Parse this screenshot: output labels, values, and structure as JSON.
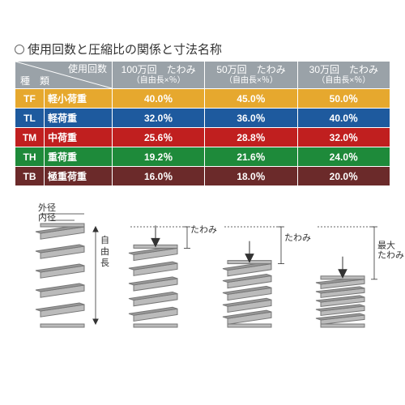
{
  "title": "使用回数と圧縮比の関係と寸法名称",
  "header": {
    "bg": "#9aa2a8",
    "fg": "#ffffff",
    "type_label_top": "使用回数",
    "type_label_bottom": "種　類",
    "cols": [
      {
        "line1": "100万回　たわみ",
        "line2": "（自由長×％）"
      },
      {
        "line1": "50万回　たわみ",
        "line2": "（自由長×％）"
      },
      {
        "line1": "30万回　たわみ",
        "line2": "（自由長×％）"
      }
    ]
  },
  "rows": [
    {
      "code": "TF",
      "name": "軽小荷重",
      "v1": "40.0％",
      "v2": "45.0％",
      "v3": "50.0％",
      "bg": "#e6a82e"
    },
    {
      "code": "TL",
      "name": "軽荷重",
      "v1": "32.0％",
      "v2": "36.0％",
      "v3": "40.0％",
      "bg": "#1e5a9e"
    },
    {
      "code": "TM",
      "name": "中荷重",
      "v1": "25.6％",
      "v2": "28.8％",
      "v3": "32.0％",
      "bg": "#c01f1f"
    },
    {
      "code": "TH",
      "name": "重荷重",
      "v1": "19.2％",
      "v2": "21.6％",
      "v3": "24.0％",
      "bg": "#1e8a3a"
    },
    {
      "code": "TB",
      "name": "極重荷重",
      "v1": "16.0％",
      "v2": "18.0％",
      "v3": "20.0％",
      "bg": "#6b2a2a"
    }
  ],
  "diagram": {
    "label_od": "外径",
    "label_id": "内径",
    "label_free_len": "自由長",
    "label_deflection": "たわみ",
    "label_max_deflection": "最大\nたわみ",
    "compressions": [
      1.0,
      0.78,
      0.62,
      0.46
    ]
  }
}
